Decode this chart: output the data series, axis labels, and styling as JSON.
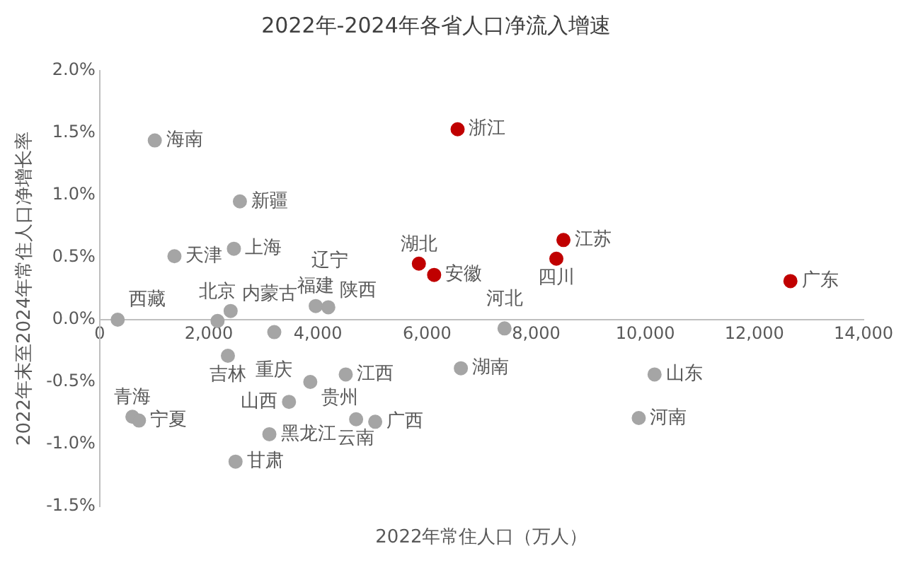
{
  "chart_data": {
    "type": "scatter",
    "title": "2022年-2024年各省人口净流入增速",
    "xlabel": "2022年常住人口（万人）",
    "ylabel": "2022年末至2024年常住人口净增长率",
    "xlim": [
      0,
      14000
    ],
    "xticks": [
      0,
      {
        "value": 2000,
        "label": "2,000"
      },
      {
        "value": 4000,
        "label": "4,000"
      },
      {
        "value": 6000,
        "label": "6,000"
      },
      {
        "value": 8000,
        "label": "8,000"
      },
      {
        "value": 10000,
        "label": "10,000"
      },
      {
        "value": 12000,
        "label": "12,000"
      },
      {
        "value": 14000,
        "label": "14,000"
      }
    ],
    "ylim": [
      -1.5,
      2.0
    ],
    "yticks": [
      {
        "value": -1.5,
        "label": "-1.5%"
      },
      {
        "value": -1.0,
        "label": "-1.0%"
      },
      {
        "value": -0.5,
        "label": "-0.5%"
      },
      {
        "value": 0,
        "label": "0.0%"
      },
      {
        "value": 0.5,
        "label": "0.5%"
      },
      {
        "value": 1.0,
        "label": "1.0%"
      },
      {
        "value": 1.5,
        "label": "1.5%"
      },
      {
        "value": 2.0,
        "label": "2.0%"
      }
    ],
    "grid": false,
    "legend": false,
    "marker": "circle",
    "series": [
      {
        "color": "#c00000",
        "x": [
          6560,
          5850,
          6130,
          8500,
          8370,
          12660
        ],
        "values": [
          1.53,
          0.45,
          0.36,
          0.64,
          0.49,
          0.31
        ]
      },
      {
        "color": "#a5a5a5",
        "x": [
          1010,
          2570,
          1370,
          2460,
          330,
          2160,
          2400,
          3960,
          4190,
          3200,
          2350,
          7420,
          6620,
          10170,
          9880,
          3860,
          4510,
          3470,
          4700,
          5050,
          3110,
          2490,
          600,
          720
        ],
        "values": [
          1.44,
          0.95,
          0.51,
          0.57,
          0,
          -0.01,
          0.07,
          0.11,
          0.1,
          -0.1,
          -0.29,
          -0.07,
          -0.39,
          -0.44,
          -0.79,
          -0.5,
          -0.44,
          -0.66,
          -0.8,
          -0.82,
          -0.92,
          -1.14,
          -0.78,
          -0.81
        ]
      }
    ],
    "annotations": [
      {
        "text": "浙江",
        "x": 6560,
        "y": 1.53
      },
      {
        "text": "湖北",
        "x": 5850,
        "y": 0.45
      },
      {
        "text": "安徽",
        "x": 6130,
        "y": 0.36
      },
      {
        "text": "江苏",
        "x": 8500,
        "y": 0.64
      },
      {
        "text": "四川",
        "x": 8370,
        "y": 0.49
      },
      {
        "text": "广东",
        "x": 12660,
        "y": 0.31
      },
      {
        "text": "海南",
        "x": 1010,
        "y": 1.44
      },
      {
        "text": "新疆",
        "x": 2570,
        "y": 0.95
      },
      {
        "text": "天津",
        "x": 1370,
        "y": 0.51
      },
      {
        "text": "上海",
        "x": 2460,
        "y": 0.57
      },
      {
        "text": "西藏",
        "x": 330,
        "y": 0
      },
      {
        "text": "北京",
        "x": 2160,
        "y": -0.01
      },
      {
        "text": "内蒙古",
        "x": 2400,
        "y": 0.07
      },
      {
        "text": "福建",
        "x": 3960,
        "y": 0.11
      },
      {
        "text": "陕西",
        "x": 4190,
        "y": 0.1
      },
      {
        "text": "辽宁",
        "x": 4220,
        "y": 0.08
      },
      {
        "text": "重庆",
        "x": 3200,
        "y": -0.1
      },
      {
        "text": "吉林",
        "x": 2350,
        "y": -0.29
      },
      {
        "text": "河北",
        "x": 7420,
        "y": -0.07
      },
      {
        "text": "湖南",
        "x": 6620,
        "y": -0.39
      },
      {
        "text": "山东",
        "x": 10170,
        "y": -0.44
      },
      {
        "text": "河南",
        "x": 9880,
        "y": -0.79
      },
      {
        "text": "贵州",
        "x": 3860,
        "y": -0.5
      },
      {
        "text": "江西",
        "x": 4510,
        "y": -0.44
      },
      {
        "text": "山西",
        "x": 3470,
        "y": -0.66
      },
      {
        "text": "云南",
        "x": 4700,
        "y": -0.8
      },
      {
        "text": "广西",
        "x": 5050,
        "y": -0.82
      },
      {
        "text": "黑龙江",
        "x": 3110,
        "y": -0.92
      },
      {
        "text": "甘肃",
        "x": 2490,
        "y": -1.14
      },
      {
        "text": "青海",
        "x": 600,
        "y": -0.78
      },
      {
        "text": "宁夏",
        "x": 720,
        "y": -0.81
      }
    ]
  }
}
